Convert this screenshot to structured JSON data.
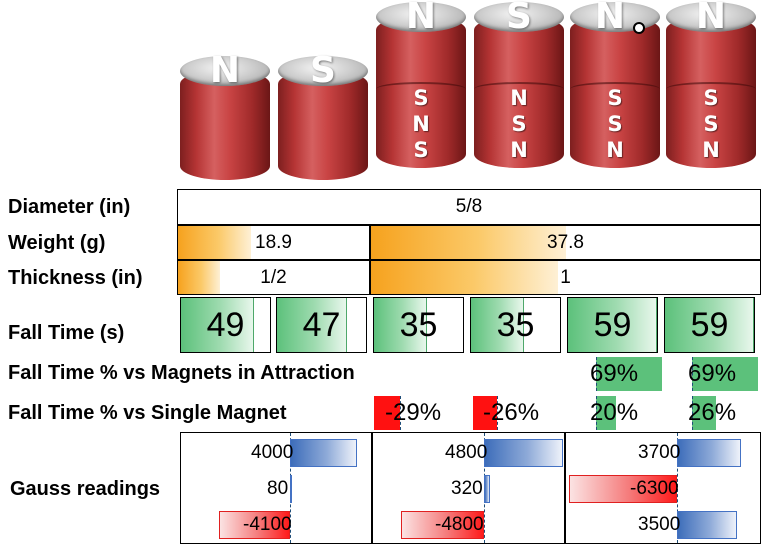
{
  "magnets": [
    {
      "top": "N",
      "sides": []
    },
    {
      "top": "S",
      "sides": []
    },
    {
      "top": "N",
      "sides": [
        "S",
        "N",
        "S"
      ]
    },
    {
      "top": "S",
      "sides": [
        "N",
        "S",
        "N"
      ]
    },
    {
      "top": "N",
      "sides": [
        "S",
        "S",
        "N"
      ]
    },
    {
      "top": "N",
      "sides": [
        "S",
        "S",
        "N"
      ]
    }
  ],
  "labels": {
    "diameter": "Diameter (in)",
    "weight": "Weight (g)",
    "thickness": "Thickness (in)",
    "fall_time": "Fall Time (s)",
    "fall_pct_attraction": "Fall Time % vs Magnets in Attraction",
    "fall_pct_single": "Fall Time % vs Single Magnet",
    "gauss": "Gauss readings"
  },
  "diameter": "5/8",
  "weight": [
    {
      "text": "18.9",
      "fill": 0.38
    },
    {
      "text": "37.8",
      "fill": 0.5
    }
  ],
  "thickness": [
    {
      "text": "1/2",
      "fill": 0.22
    },
    {
      "text": "1",
      "fill": 0.48
    }
  ],
  "fall_time": [
    {
      "text": "49",
      "fill": 0.82
    },
    {
      "text": "47",
      "fill": 0.79
    },
    {
      "text": "35",
      "fill": 0.59
    },
    {
      "text": "35",
      "fill": 0.59
    },
    {
      "text": "59",
      "fill": 1.0
    },
    {
      "text": "59",
      "fill": 1.0
    }
  ],
  "fall_pct_attraction": [
    "69%",
    "69%"
  ],
  "fall_pct_single": [
    "-29%",
    "-26%",
    "20%",
    "26%"
  ],
  "gauss": [
    [
      "4000",
      "80",
      "-4100"
    ],
    [
      "4800",
      "320",
      "-4800"
    ],
    [
      "3700",
      "-6300",
      "3500"
    ]
  ],
  "colors": {
    "orange_bar": "#f6a21e",
    "green_bar": "#5cc17b",
    "red_bar": "#ff1111",
    "blue_bar": "#3d6dba"
  }
}
